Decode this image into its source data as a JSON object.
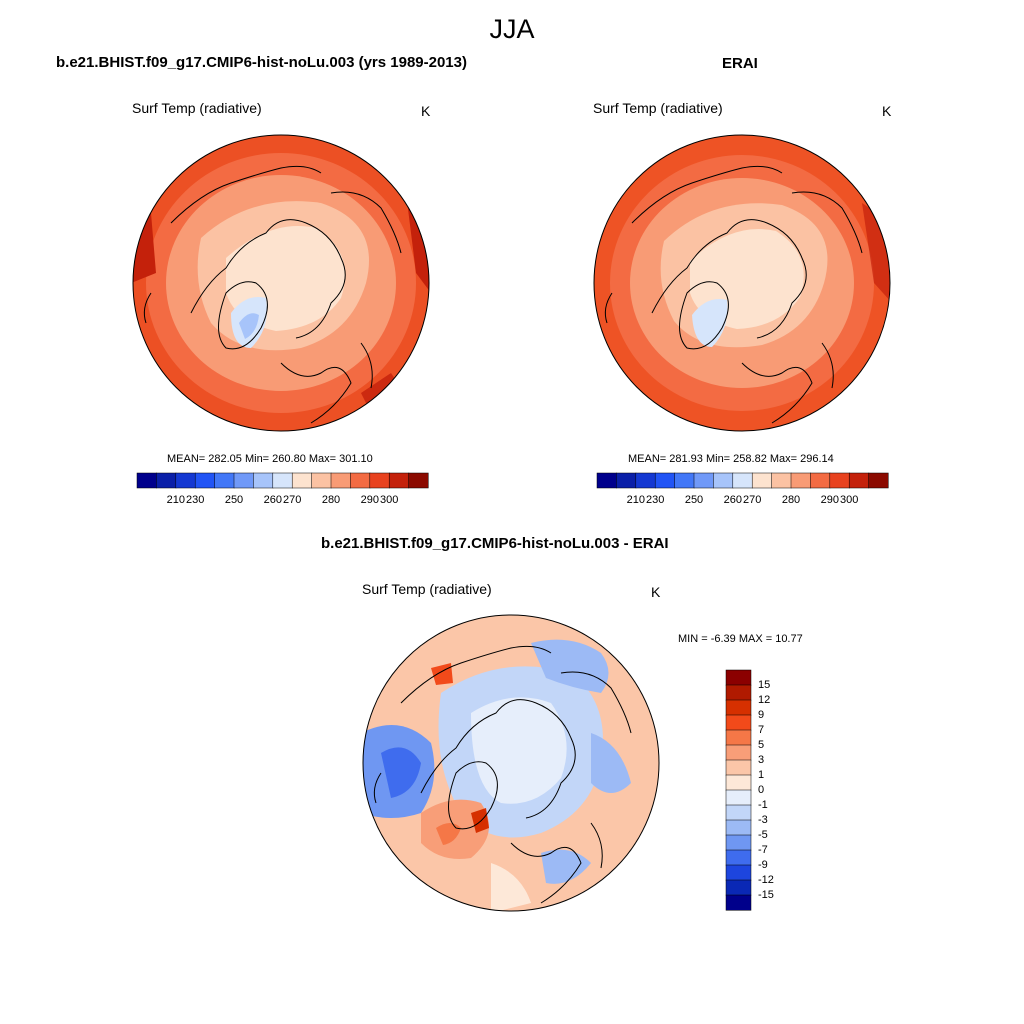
{
  "figure": {
    "title": "JJA"
  },
  "panels": [
    {
      "title": "b.e21.BHIST.f09_g17.CMIP6-hist-noLu.003 (yrs 1989-2013)",
      "variable": "Surf Temp (radiative)",
      "units": "K",
      "stats": "MEAN= 282.05  Min= 260.80  Max= 301.10",
      "colorbar_ticks": [
        "210",
        "230",
        "250",
        "260",
        "270",
        "280",
        "290",
        "300"
      ]
    },
    {
      "title": "ERAI",
      "variable": "Surf Temp (radiative)",
      "units": "K",
      "stats": "MEAN= 281.93  Min= 258.82  Max= 296.14",
      "colorbar_ticks": [
        "210",
        "230",
        "250",
        "260",
        "270",
        "280",
        "290",
        "300"
      ]
    },
    {
      "title": "b.e21.BHIST.f09_g17.CMIP6-hist-noLu.003 - ERAI",
      "variable": "Surf Temp (radiative)",
      "units": "K",
      "stats": "MIN =  -6.39 MAX =  10.77",
      "colorbar_ticks": [
        "15",
        "12",
        "9",
        "7",
        "5",
        "3",
        "1",
        "0",
        "-1",
        "-3",
        "-5",
        "-7",
        "-9",
        "-12",
        "-15"
      ]
    }
  ],
  "colors": {
    "temp_levels": [
      "#00008c",
      "#0a1fa8",
      "#1438d2",
      "#2154f5",
      "#4277f7",
      "#7099f8",
      "#a7c4fa",
      "#d6e5fb",
      "#fde3cf",
      "#fbc2a3",
      "#f89b75",
      "#f36b43",
      "#e8421f",
      "#c4210b",
      "#8b0a00"
    ],
    "diff_levels": [
      "#8b0000",
      "#b01a00",
      "#d63000",
      "#f24a1a",
      "#f57747",
      "#f89e78",
      "#fbc6a8",
      "#fde8d8",
      "#e6eefb",
      "#c2d6f8",
      "#9cbaf5",
      "#6f97f2",
      "#3f6cee",
      "#1d45de",
      "#0a28b5",
      "#00008b"
    ],
    "coastline": "#000000",
    "ocean_default": "#f2622b"
  }
}
